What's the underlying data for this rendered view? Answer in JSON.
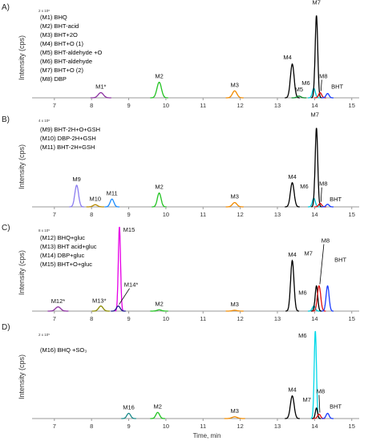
{
  "figure": {
    "xlabel": "Time, min",
    "ylabel": "Intensity (cps)",
    "xticks": [
      7,
      8,
      9,
      10,
      11,
      12,
      13,
      14,
      15
    ]
  },
  "chart_data": [
    {
      "type": "line",
      "panel_label": "A)",
      "y_max_label": "2 x 10⁶",
      "xlim": [
        6.4,
        15.2
      ],
      "ylabel": "Intensity (cps)",
      "legend": [
        "(M1) BHQ",
        "(M2) BHT-acid",
        "(M3) BHT+2O",
        "(M4) BHT+O (1)",
        "(M5) BHT-aldehyde +O",
        "(M6) BHT-aldehyde",
        "(M7) BHT+O (2)",
        "(M8) DBP"
      ],
      "peaks": [
        {
          "label": "M1*",
          "x": 8.25,
          "height": 0.06,
          "width": 0.07,
          "color": "#8b2fa0"
        },
        {
          "label": "M2",
          "x": 9.82,
          "height": 0.18,
          "width": 0.06,
          "color": "#22c322"
        },
        {
          "label": "M3",
          "x": 11.85,
          "height": 0.08,
          "width": 0.06,
          "color": "#f08a00"
        },
        {
          "label": "M4",
          "x": 13.4,
          "height": 0.39,
          "width": 0.05,
          "color": "#000000"
        },
        {
          "label": "M5",
          "x": 13.58,
          "height": 0.02,
          "width": 0.05,
          "color": "#0a8a2a"
        },
        {
          "label": "M6",
          "x": 13.98,
          "height": 0.11,
          "width": 0.04,
          "color": "#00c8d8"
        },
        {
          "label": "M7",
          "x": 14.05,
          "height": 0.95,
          "width": 0.035,
          "color": "#000000"
        },
        {
          "label": "M8",
          "x": 14.15,
          "height": 0.06,
          "width": 0.04,
          "color": "#e01010"
        },
        {
          "label": "BHT",
          "x": 14.35,
          "height": 0.05,
          "width": 0.04,
          "color": "#1a3cff"
        }
      ]
    },
    {
      "type": "line",
      "panel_label": "B)",
      "y_max_label": "4 x 10⁶",
      "xlim": [
        6.4,
        15.2
      ],
      "ylabel": "Intensity (cps)",
      "legend": [
        "(M9) BHT-2H+O+GSH",
        "(M10) DBP-2H+GSH",
        "(M11) BHT-2H+GSH"
      ],
      "peaks": [
        {
          "label": "M9",
          "x": 7.6,
          "height": 0.25,
          "width": 0.05,
          "color": "#8a7cf0"
        },
        {
          "label": "M10",
          "x": 8.1,
          "height": 0.025,
          "width": 0.06,
          "color": "#b88a00"
        },
        {
          "label": "M11",
          "x": 8.55,
          "height": 0.09,
          "width": 0.05,
          "color": "#1a8cff"
        },
        {
          "label": "M2",
          "x": 9.82,
          "height": 0.16,
          "width": 0.05,
          "color": "#22c322"
        },
        {
          "label": "M3",
          "x": 11.85,
          "height": 0.05,
          "width": 0.06,
          "color": "#f08a00"
        },
        {
          "label": "M4",
          "x": 13.4,
          "height": 0.28,
          "width": 0.05,
          "color": "#000000"
        },
        {
          "label": "M6",
          "x": 13.98,
          "height": 0.1,
          "width": 0.04,
          "color": "#00c8d8"
        },
        {
          "label": "M7",
          "x": 14.05,
          "height": 0.91,
          "width": 0.035,
          "color": "#000000"
        },
        {
          "label": "M8",
          "x": 14.15,
          "height": 0.04,
          "width": 0.04,
          "color": "#e01010"
        },
        {
          "label": "BHT",
          "x": 14.35,
          "height": 0.03,
          "width": 0.04,
          "color": "#1a3cff"
        }
      ]
    },
    {
      "type": "line",
      "panel_label": "C)",
      "y_max_label": "8 x 10⁵",
      "xlim": [
        6.4,
        15.2
      ],
      "ylabel": "Intensity (cps)",
      "legend": [
        "(M12) BHQ+gluc",
        "(M13) BHT acid+gluc",
        "(M14) DBP+gluc",
        "(M15) BHT+O+gluc"
      ],
      "peaks": [
        {
          "label": "M12*",
          "x": 7.1,
          "height": 0.05,
          "width": 0.07,
          "color": "#8b2fa0"
        },
        {
          "label": "M13*",
          "x": 8.25,
          "height": 0.06,
          "width": 0.06,
          "color": "#8a8a00"
        },
        {
          "label": "M15",
          "x": 8.75,
          "height": 1.0,
          "width": 0.03,
          "color": "#e600e6"
        },
        {
          "label": "M14*",
          "x": 8.72,
          "height": 0.06,
          "width": 0.05,
          "color": "#1a1a8a"
        },
        {
          "label": "M2",
          "x": 9.82,
          "height": 0.015,
          "width": 0.06,
          "color": "#22c322"
        },
        {
          "label": "M3",
          "x": 11.85,
          "height": 0.01,
          "width": 0.06,
          "color": "#f08a00"
        },
        {
          "label": "M4",
          "x": 13.4,
          "height": 0.6,
          "width": 0.045,
          "color": "#000000"
        },
        {
          "label": "M6",
          "x": 13.98,
          "height": 0.06,
          "width": 0.04,
          "color": "#00c8d8"
        },
        {
          "label": "M7",
          "x": 14.05,
          "height": 0.3,
          "width": 0.035,
          "color": "#000000"
        },
        {
          "label": "M8",
          "x": 14.12,
          "height": 0.3,
          "width": 0.045,
          "color": "#e01010"
        },
        {
          "label": "BHT",
          "x": 14.35,
          "height": 0.3,
          "width": 0.04,
          "color": "#1a3cff"
        }
      ]
    },
    {
      "type": "line",
      "panel_label": "D)",
      "y_max_label": "2 x 10⁵",
      "xlim": [
        6.4,
        15.2
      ],
      "ylabel": "Intensity (cps)",
      "legend": [
        "(M16) BHQ +SO₃"
      ],
      "peaks": [
        {
          "label": "M16",
          "x": 9.0,
          "height": 0.06,
          "width": 0.05,
          "color": "#1a8a8a"
        },
        {
          "label": "M2",
          "x": 9.78,
          "height": 0.07,
          "width": 0.05,
          "color": "#22c322"
        },
        {
          "label": "M3",
          "x": 11.85,
          "height": 0.02,
          "width": 0.07,
          "color": "#f08a00"
        },
        {
          "label": "M4",
          "x": 13.4,
          "height": 0.26,
          "width": 0.05,
          "color": "#000000"
        },
        {
          "label": "M6",
          "x": 14.02,
          "height": 1.0,
          "width": 0.03,
          "color": "#00d8e8"
        },
        {
          "label": "M7",
          "x": 14.05,
          "height": 0.12,
          "width": 0.03,
          "color": "#000000"
        },
        {
          "label": "M8",
          "x": 14.12,
          "height": 0.05,
          "width": 0.04,
          "color": "#e01010"
        },
        {
          "label": "BHT",
          "x": 14.35,
          "height": 0.06,
          "width": 0.04,
          "color": "#1a3cff"
        }
      ]
    }
  ]
}
